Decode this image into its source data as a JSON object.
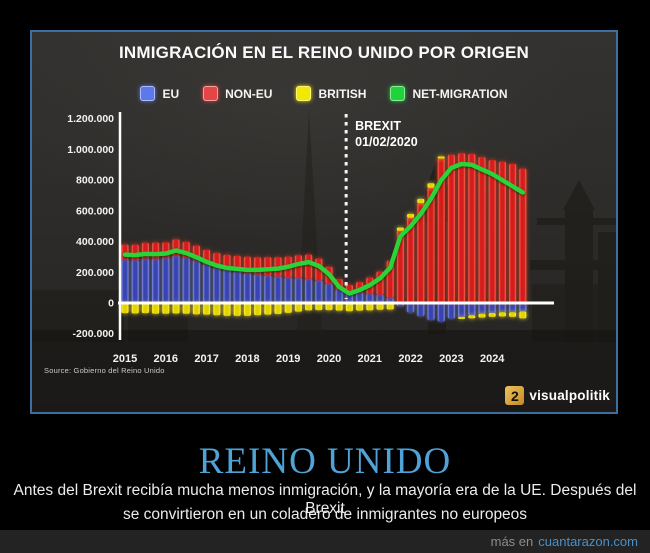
{
  "graphic": {
    "title": "INMIGRACIÓN EN EL REINO UNIDO POR ORIGEN",
    "source": "Source: Gobierno del Reino Unido",
    "logo": {
      "text": "visualpolitik",
      "glyph": "2"
    }
  },
  "chart_data": {
    "type": "bar",
    "subtype": "stacked quarterly bars (EU / NON-EU / BRITISH) with NET-MIGRATION line",
    "title": "INMIGRACIÓN EN EL REINO UNIDO POR ORIGEN",
    "values_unit": "thousands of people",
    "legend": [
      {
        "id": "eu",
        "label": "EU",
        "color": "#5b79ea"
      },
      {
        "id": "noneu",
        "label": "NON-EU",
        "color": "#e64545"
      },
      {
        "id": "british",
        "label": "BRITISH",
        "color": "#f2e800"
      },
      {
        "id": "net",
        "label": "NET-MIGRATION",
        "color": "#1ed43a"
      }
    ],
    "y_axis": {
      "min": -200000,
      "max": 1200000,
      "grid": false,
      "ticks": [
        {
          "label": "1.200.000",
          "v": 1200
        },
        {
          "label": "1.000.000",
          "v": 1000
        },
        {
          "label": "800.000",
          "v": 800
        },
        {
          "label": "600.000",
          "v": 600
        },
        {
          "label": "400.000",
          "v": 400
        },
        {
          "label": "200.000",
          "v": 200
        },
        {
          "label": "0",
          "v": 0
        },
        {
          "label": "-200.000",
          "v": -200
        }
      ]
    },
    "x_axis": {
      "years": [
        2015,
        2016,
        2017,
        2018,
        2019,
        2020,
        2021,
        2022,
        2023,
        2024
      ]
    },
    "annotation": {
      "line1": "BREXIT",
      "line2": "01/02/2020",
      "x_t": 2020.42
    },
    "quarters": [
      {
        "t": 2015.0,
        "eu": 285,
        "noneu": 95,
        "british": -66,
        "net": 315
      },
      {
        "t": 2015.25,
        "eu": 280,
        "noneu": 100,
        "british": -68,
        "net": 312
      },
      {
        "t": 2015.5,
        "eu": 290,
        "noneu": 102,
        "british": -66,
        "net": 320
      },
      {
        "t": 2015.75,
        "eu": 288,
        "noneu": 105,
        "british": -70,
        "net": 318
      },
      {
        "t": 2016.0,
        "eu": 295,
        "noneu": 100,
        "british": -70,
        "net": 322
      },
      {
        "t": 2016.25,
        "eu": 308,
        "noneu": 106,
        "british": -68,
        "net": 342
      },
      {
        "t": 2016.5,
        "eu": 298,
        "noneu": 100,
        "british": -70,
        "net": 325
      },
      {
        "t": 2016.75,
        "eu": 278,
        "noneu": 96,
        "british": -74,
        "net": 298
      },
      {
        "t": 2017.0,
        "eu": 252,
        "noneu": 94,
        "british": -76,
        "net": 268
      },
      {
        "t": 2017.25,
        "eu": 232,
        "noneu": 94,
        "british": -80,
        "net": 244
      },
      {
        "t": 2017.5,
        "eu": 218,
        "noneu": 96,
        "british": -84,
        "net": 228
      },
      {
        "t": 2017.75,
        "eu": 208,
        "noneu": 100,
        "british": -84,
        "net": 222
      },
      {
        "t": 2018.0,
        "eu": 196,
        "noneu": 106,
        "british": -84,
        "net": 216
      },
      {
        "t": 2018.25,
        "eu": 186,
        "noneu": 112,
        "british": -80,
        "net": 216
      },
      {
        "t": 2018.5,
        "eu": 180,
        "noneu": 118,
        "british": -76,
        "net": 220
      },
      {
        "t": 2018.75,
        "eu": 174,
        "noneu": 124,
        "british": -72,
        "net": 224
      },
      {
        "t": 2019.0,
        "eu": 168,
        "noneu": 134,
        "british": -64,
        "net": 236
      },
      {
        "t": 2019.25,
        "eu": 163,
        "noneu": 148,
        "british": -56,
        "net": 254
      },
      {
        "t": 2019.5,
        "eu": 158,
        "noneu": 158,
        "british": -48,
        "net": 266
      },
      {
        "t": 2019.75,
        "eu": 148,
        "noneu": 142,
        "british": -46,
        "net": 242
      },
      {
        "t": 2020.0,
        "eu": 128,
        "noneu": 108,
        "british": -46,
        "net": 188
      },
      {
        "t": 2020.25,
        "eu": 88,
        "noneu": 68,
        "british": -50,
        "net": 104
      },
      {
        "t": 2020.5,
        "eu": 66,
        "noneu": 52,
        "british": -54,
        "net": 62
      },
      {
        "t": 2020.75,
        "eu": 70,
        "noneu": 66,
        "british": -50,
        "net": 85
      },
      {
        "t": 2021.0,
        "eu": 62,
        "noneu": 104,
        "british": -48,
        "net": 116
      },
      {
        "t": 2021.25,
        "eu": 55,
        "noneu": 150,
        "british": -44,
        "net": 160
      },
      {
        "t": 2021.5,
        "eu": 35,
        "noneu": 240,
        "british": -42,
        "net": 230
      },
      {
        "t": 2021.75,
        "eu": -20,
        "noneu": 470,
        "british": 22,
        "net": 435
      },
      {
        "t": 2022.0,
        "eu": -60,
        "noneu": 555,
        "british": 25,
        "net": 500
      },
      {
        "t": 2022.25,
        "eu": -85,
        "noneu": 650,
        "british": 28,
        "net": 580
      },
      {
        "t": 2022.5,
        "eu": -110,
        "noneu": 750,
        "british": 30,
        "net": 680
      },
      {
        "t": 2022.75,
        "eu": -120,
        "noneu": 940,
        "british": 15,
        "net": 800
      },
      {
        "t": 2023.0,
        "eu": -100,
        "noneu": 965,
        "british": 0,
        "net": 880
      },
      {
        "t": 2023.25,
        "eu": -90,
        "noneu": 975,
        "british": -14,
        "net": 905
      },
      {
        "t": 2023.5,
        "eu": -80,
        "noneu": 970,
        "british": -20,
        "net": 900
      },
      {
        "t": 2023.75,
        "eu": -70,
        "noneu": 950,
        "british": -25,
        "net": 870
      },
      {
        "t": 2024.0,
        "eu": -65,
        "noneu": 930,
        "british": -25,
        "net": 840
      },
      {
        "t": 2024.25,
        "eu": -60,
        "noneu": 920,
        "british": -28,
        "net": 800
      },
      {
        "t": 2024.5,
        "eu": -60,
        "noneu": 905,
        "british": -30,
        "net": 760
      },
      {
        "t": 2024.75,
        "eu": -55,
        "noneu": 875,
        "british": -45,
        "net": 720
      }
    ]
  },
  "meme": {
    "title": "REINO UNIDO",
    "caption_lines": [
      "Antes del Brexit recibía mucha menos inmigración, y la mayoría era de la UE. Después del Brexit",
      "se convirtieron en un coladero de inmigrantes no europeos"
    ],
    "footer": {
      "prefix": "más en",
      "site": "cuantarazon.com"
    }
  },
  "colors": {
    "frame_border": "#3d6f9e",
    "meme_title": "#4fa3d6",
    "footer_site": "#4a90c8",
    "bar_eu_core": "#3947b8",
    "bar_eu_edge": "#8894ee",
    "bar_noneu_core": "#dd1c1c",
    "bar_noneu_edge": "#ff6a55",
    "bar_british_core": "#e3d400",
    "bar_british_edge": "#fff23c",
    "net_line": "#2bd339",
    "axis": "#ffffff"
  }
}
